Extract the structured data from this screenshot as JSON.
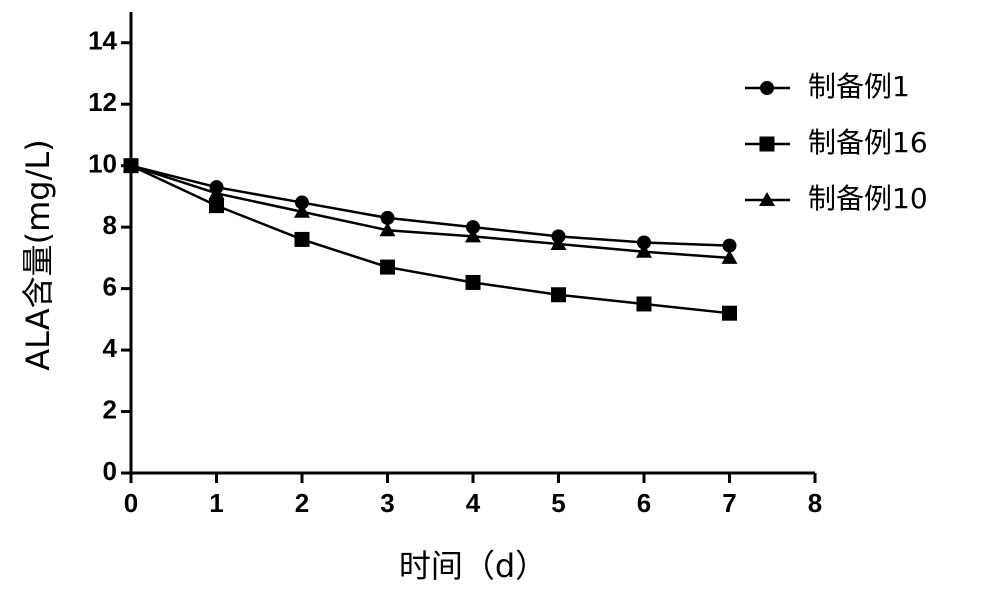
{
  "chart_data": {
    "type": "line",
    "x_label": "时间（d）",
    "y_label": "ALA含量(mg/L)",
    "x": [
      0,
      1,
      2,
      3,
      4,
      5,
      6,
      7
    ],
    "series": [
      {
        "name": "制备例1",
        "color": "#000000",
        "marker": "circle",
        "values": [
          10,
          9.3,
          8.8,
          8.3,
          8.0,
          7.7,
          7.5,
          7.4
        ]
      },
      {
        "name": "制备例16",
        "color": "#000000",
        "marker": "square",
        "values": [
          10,
          8.7,
          7.6,
          6.7,
          6.2,
          5.8,
          5.5,
          5.2
        ]
      },
      {
        "name": "制备例10",
        "color": "#000000",
        "marker": "triangle",
        "values": [
          10,
          9.1,
          8.5,
          7.9,
          7.7,
          7.45,
          7.2,
          7.0
        ]
      }
    ],
    "xlim": [
      0,
      8
    ],
    "xticks": [
      0,
      1,
      2,
      3,
      4,
      5,
      6,
      7,
      8
    ],
    "ylim": [
      0,
      15
    ],
    "yticks": [
      0,
      2,
      4,
      6,
      8,
      10,
      12,
      14
    ],
    "legend": "right"
  }
}
